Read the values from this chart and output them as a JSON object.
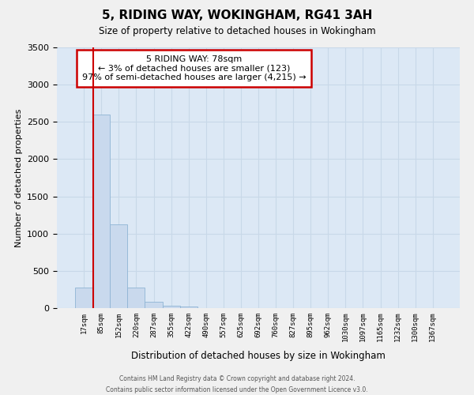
{
  "title": "5, RIDING WAY, WOKINGHAM, RG41 3AH",
  "subtitle": "Size of property relative to detached houses in Wokingham",
  "xlabel": "Distribution of detached houses by size in Wokingham",
  "ylabel": "Number of detached properties",
  "bar_labels": [
    "17sqm",
    "85sqm",
    "152sqm",
    "220sqm",
    "287sqm",
    "355sqm",
    "422sqm",
    "490sqm",
    "557sqm",
    "625sqm",
    "692sqm",
    "760sqm",
    "827sqm",
    "895sqm",
    "962sqm",
    "1030sqm",
    "1097sqm",
    "1165sqm",
    "1232sqm",
    "1300sqm",
    "1367sqm"
  ],
  "bar_values": [
    280,
    2600,
    1120,
    280,
    80,
    30,
    20,
    0,
    0,
    0,
    0,
    0,
    0,
    0,
    0,
    0,
    0,
    0,
    0,
    0,
    0
  ],
  "bar_color": "#c9d9ed",
  "bar_edge_color": "#8fb4d4",
  "annotation_box_text": "5 RIDING WAY: 78sqm\n← 3% of detached houses are smaller (123)\n97% of semi-detached houses are larger (4,215) →",
  "annotation_box_color": "#ffffff",
  "annotation_box_edge_color": "#cc0000",
  "vline_x": 0.545,
  "vline_color": "#cc0000",
  "ylim": [
    0,
    3500
  ],
  "yticks": [
    0,
    500,
    1000,
    1500,
    2000,
    2500,
    3000,
    3500
  ],
  "grid_color": "#c8d8e8",
  "background_color": "#dce8f5",
  "fig_background": "#f0f0f0",
  "footer_line1": "Contains HM Land Registry data © Crown copyright and database right 2024.",
  "footer_line2": "Contains public sector information licensed under the Open Government Licence v3.0."
}
